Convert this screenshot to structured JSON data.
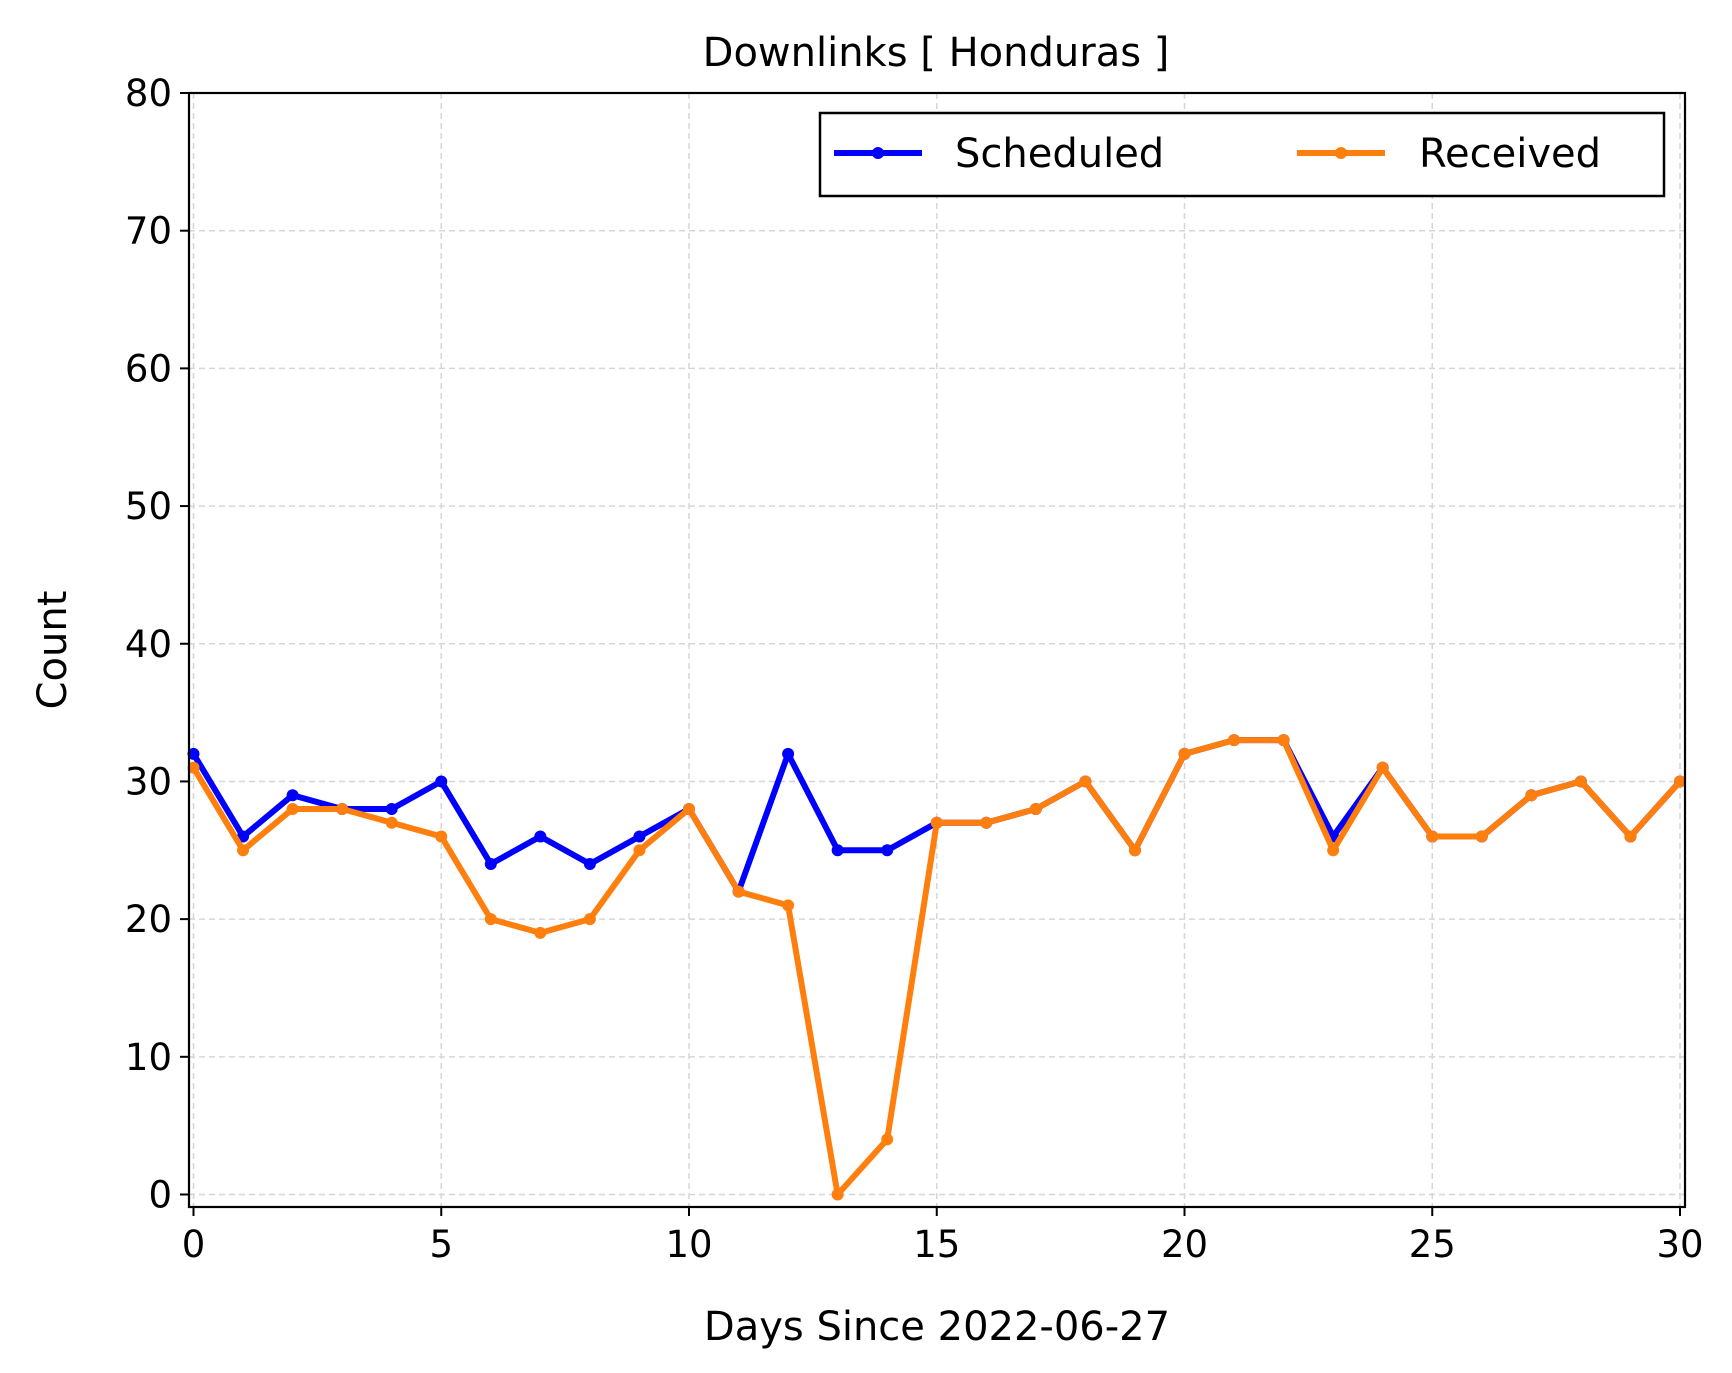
{
  "chart_data": {
    "type": "line",
    "title": "Downlinks [ Honduras ]",
    "xlabel": "Days Since 2022-06-27",
    "ylabel": "Count",
    "xlim": [
      0,
      30
    ],
    "ylim": [
      0,
      80
    ],
    "xticks": [
      0,
      5,
      10,
      15,
      20,
      25,
      30
    ],
    "yticks": [
      0,
      10,
      20,
      30,
      40,
      50,
      60,
      70,
      80
    ],
    "grid": true,
    "legend_position": "top-right",
    "x": [
      0,
      1,
      2,
      3,
      4,
      5,
      6,
      7,
      8,
      9,
      10,
      11,
      12,
      13,
      14,
      15,
      16,
      17,
      18,
      19,
      20,
      21,
      22,
      23,
      24,
      25,
      26,
      27,
      28,
      29,
      30
    ],
    "series": [
      {
        "name": "Scheduled",
        "color": "#0000ff",
        "marker": "dot",
        "values": [
          32,
          26,
          29,
          28,
          28,
          30,
          24,
          26,
          24,
          26,
          28,
          22,
          32,
          25,
          25,
          27,
          27,
          28,
          30,
          25,
          32,
          33,
          33,
          26,
          31,
          26,
          26,
          29,
          30,
          26,
          30
        ]
      },
      {
        "name": "Received",
        "color": "#ff7f0e",
        "marker": "dot",
        "values": [
          31,
          25,
          28,
          28,
          27,
          26,
          20,
          19,
          20,
          25,
          28,
          22,
          21,
          0,
          4,
          27,
          27,
          28,
          30,
          25,
          32,
          33,
          33,
          25,
          31,
          26,
          26,
          29,
          30,
          26,
          30
        ]
      }
    ]
  }
}
